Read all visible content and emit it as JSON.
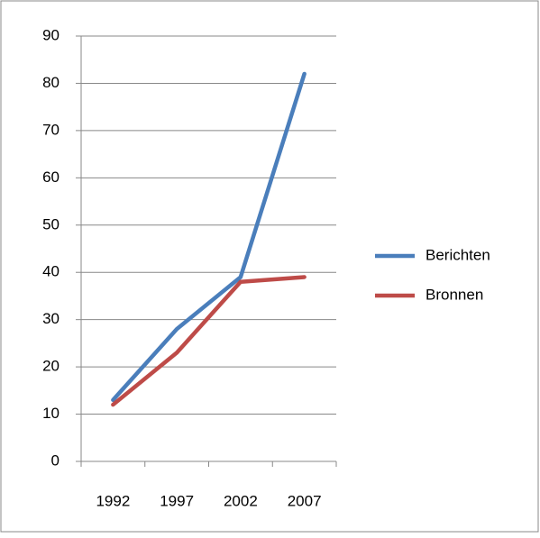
{
  "chart_data": {
    "type": "line",
    "categories": [
      "1992",
      "1997",
      "2002",
      "2007"
    ],
    "series": [
      {
        "name": "Berichten",
        "color": "#4a7ebb",
        "values": [
          13,
          28,
          39,
          82
        ]
      },
      {
        "name": "Bronnen",
        "color": "#be4b48",
        "values": [
          12,
          23,
          38,
          39
        ]
      }
    ],
    "ylim": [
      0,
      90
    ],
    "yticks": [
      0,
      10,
      20,
      30,
      40,
      50,
      60,
      70,
      80,
      90
    ],
    "grid": true,
    "legend": "right"
  }
}
